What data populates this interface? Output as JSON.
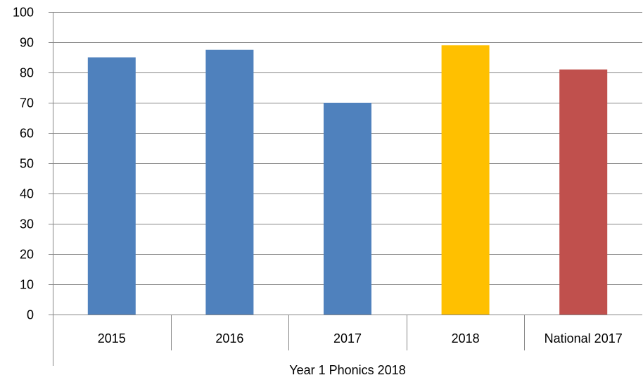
{
  "chart_data": {
    "type": "bar",
    "categories": [
      "2015",
      "2016",
      "2017",
      "2018",
      "National 2017"
    ],
    "values": [
      85,
      87.5,
      70,
      89,
      81
    ],
    "bar_colors": [
      "#4f81bd",
      "#4f81bd",
      "#4f81bd",
      "#ffc000",
      "#c0504d"
    ],
    "group_label": "Year 1 Phonics 2018",
    "ylim": [
      0,
      100
    ],
    "yticks": [
      0,
      10,
      20,
      30,
      40,
      50,
      60,
      70,
      80,
      90,
      100
    ],
    "grid": true,
    "legend": "none",
    "axis_color": "#868686"
  }
}
